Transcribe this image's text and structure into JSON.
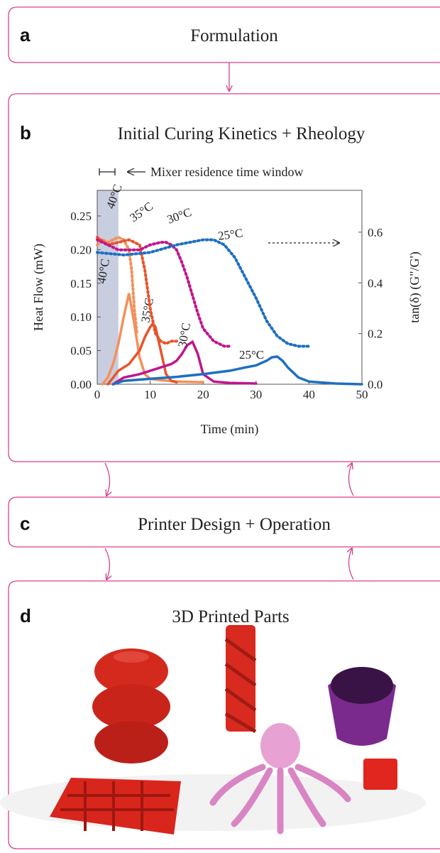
{
  "panels": [
    {
      "letter": "a",
      "title": "Formulation"
    },
    {
      "letter": "b",
      "title": "Initial Curing Kinetics + Rheology"
    },
    {
      "letter": "c",
      "title": "Printer Design + Operation"
    },
    {
      "letter": "d",
      "title": "3D Printed Parts"
    }
  ],
  "chart_data": {
    "type": "line",
    "annotation": "Mixer residence time window",
    "shade_x": [
      0,
      4
    ],
    "xlabel": "Time (min)",
    "ylabel": "Heat Flow (mW)",
    "y2label": "tan(δ) (G\"/G')",
    "xlim": [
      0,
      50
    ],
    "xticks": [
      0,
      10,
      20,
      30,
      40,
      50
    ],
    "ylim": [
      0,
      0.288
    ],
    "yticks": [
      {
        "value": 0,
        "label": "0.00"
      },
      {
        "value": 0.05,
        "label": "0.05"
      },
      {
        "value": 0.1,
        "label": "0.10"
      },
      {
        "value": 0.15,
        "label": "0.15"
      },
      {
        "value": 0.2,
        "label": "0.20"
      },
      {
        "value": 0.25,
        "label": "0.25"
      }
    ],
    "y2lim": [
      0,
      0.765
    ],
    "y2ticks": [
      {
        "value": 0,
        "label": "0.0"
      },
      0.2,
      0.4,
      0.6
    ],
    "series": [
      {
        "name": "40°C",
        "color": "#f4905a",
        "x": [
          1,
          2,
          3,
          4,
          5,
          6,
          7,
          8,
          9,
          10,
          12,
          15,
          20
        ],
        "values": [
          0,
          0.01,
          0.03,
          0.06,
          0.1,
          0.135,
          0.09,
          0.04,
          0.015,
          0.008,
          0.006,
          0.004,
          0.003
        ]
      },
      {
        "name": "35°C",
        "color": "#e8532a",
        "x": [
          2,
          3,
          4,
          5,
          6,
          7,
          8,
          9,
          10,
          10.5,
          11,
          12,
          13,
          14,
          15
        ],
        "values": [
          0,
          0.01,
          0.02,
          0.025,
          0.03,
          0.04,
          0.05,
          0.07,
          0.085,
          0.09,
          0.085,
          0.05,
          0.015,
          0.005,
          0.003
        ]
      },
      {
        "name": "30°C",
        "color": "#c0168c",
        "x": [
          3,
          5,
          8,
          10,
          12,
          14,
          15,
          16,
          17,
          18,
          19,
          20,
          22,
          25,
          30
        ],
        "values": [
          0,
          0.01,
          0.015,
          0.02,
          0.025,
          0.03,
          0.035,
          0.045,
          0.058,
          0.063,
          0.045,
          0.015,
          0.004,
          0.002,
          0.001
        ]
      },
      {
        "name": "25°C",
        "color": "#1e6fbf",
        "x": [
          3,
          5,
          10,
          15,
          20,
          25,
          28,
          30,
          32,
          33,
          34,
          35,
          36,
          38,
          40,
          45,
          50
        ],
        "values": [
          0,
          0.005,
          0.008,
          0.011,
          0.015,
          0.02,
          0.025,
          0.028,
          0.035,
          0.04,
          0.041,
          0.035,
          0.025,
          0.01,
          0.004,
          0.001,
          0
        ]
      },
      {
        "name": "40°C",
        "color": "#f4905a",
        "axis": "y2",
        "dashed": true,
        "x": [
          0,
          1,
          2,
          3,
          4,
          5,
          6,
          6.5,
          7,
          7.5
        ],
        "values": [
          0.55,
          0.57,
          0.56,
          0.57,
          0.58,
          0.57,
          0.53,
          0.45,
          0.3,
          0.2
        ]
      },
      {
        "name": "35°C",
        "color": "#e8532a",
        "axis": "y2",
        "dashed": true,
        "x": [
          0,
          2,
          4,
          6,
          8,
          9,
          10,
          11,
          12,
          13,
          14,
          15
        ],
        "values": [
          0.58,
          0.55,
          0.56,
          0.57,
          0.55,
          0.45,
          0.3,
          0.2,
          0.17,
          0.16,
          0.17,
          0.17
        ]
      },
      {
        "name": "30°C",
        "color": "#c0168c",
        "axis": "y2",
        "dashed": true,
        "x": [
          0,
          4,
          8,
          10,
          12,
          13,
          14,
          15,
          16,
          17,
          18,
          19,
          20,
          22,
          24,
          25
        ],
        "values": [
          0.57,
          0.53,
          0.53,
          0.55,
          0.56,
          0.56,
          0.55,
          0.53,
          0.48,
          0.42,
          0.35,
          0.28,
          0.22,
          0.17,
          0.15,
          0.15
        ]
      },
      {
        "name": "25°C",
        "color": "#1e6fbf",
        "axis": "y2",
        "dashed": true,
        "x": [
          0,
          5,
          10,
          15,
          20,
          22,
          24,
          26,
          28,
          30,
          32,
          34,
          36,
          38,
          40
        ],
        "values": [
          0.52,
          0.51,
          0.52,
          0.55,
          0.57,
          0.57,
          0.55,
          0.5,
          0.42,
          0.34,
          0.25,
          0.19,
          0.16,
          0.15,
          0.15
        ]
      }
    ]
  }
}
